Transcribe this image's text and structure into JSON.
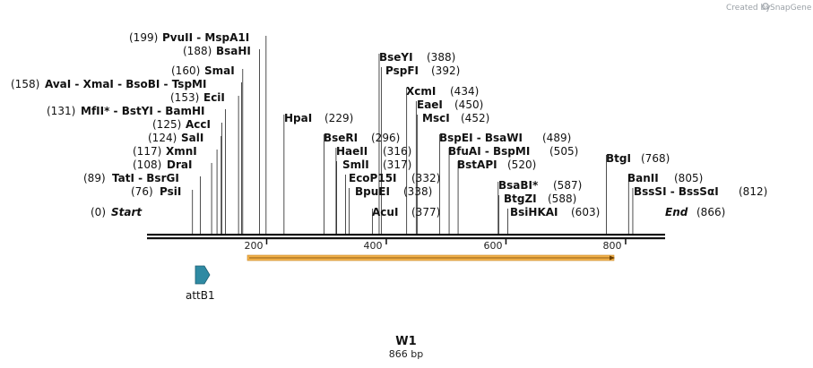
{
  "credit": {
    "text": "Created by",
    "brand": "SnapGene"
  },
  "map": {
    "name": "W1",
    "length_text": "866 bp",
    "length_bp": 866,
    "ticks": [
      "200",
      "400",
      "600",
      "800"
    ],
    "tick_values": [
      200,
      400,
      600,
      800
    ]
  },
  "sites": [
    {
      "pos": 199,
      "pos_text": "(199)",
      "names": "PvuII  - MspA1I",
      "star": false,
      "side": "left"
    },
    {
      "pos": 188,
      "pos_text": "(188)",
      "names": "BsaHI",
      "star": false,
      "side": "left"
    },
    {
      "pos": 160,
      "pos_text": "(160)",
      "names": "SmaI",
      "star": false,
      "side": "left"
    },
    {
      "pos": 158,
      "pos_text": "(158)",
      "names": "AvaI  - XmaI  - BsoBI  - TspMI",
      "star": false,
      "side": "left"
    },
    {
      "pos": 153,
      "pos_text": "(153)",
      "names": "EciI",
      "star": false,
      "side": "left"
    },
    {
      "pos": 131,
      "pos_text": "(131)",
      "names": "MfII",
      "star": true,
      "names2": " - BstYI  - BamHI",
      "side": "left"
    },
    {
      "pos": 125,
      "pos_text": "(125)",
      "names": "AccI",
      "star": false,
      "side": "left"
    },
    {
      "pos": 124,
      "pos_text": "(124)",
      "names": "SalI",
      "star": false,
      "side": "left"
    },
    {
      "pos": 117,
      "pos_text": "(117)",
      "names": "XmnI",
      "star": false,
      "side": "left"
    },
    {
      "pos": 108,
      "pos_text": "(108)",
      "names": "DraI",
      "star": false,
      "side": "left"
    },
    {
      "pos": 89,
      "pos_text": "(89)",
      "names": "TatI  - BsrGI",
      "star": false,
      "side": "left"
    },
    {
      "pos": 76,
      "pos_text": "(76)",
      "names": "PsiI",
      "star": false,
      "side": "left"
    },
    {
      "pos": 229,
      "pos_text": "(229)",
      "names": "HpaI",
      "star": false,
      "side": "right"
    },
    {
      "pos": 296,
      "pos_text": "(296)",
      "names": "BseRI",
      "star": false,
      "side": "right"
    },
    {
      "pos": 316,
      "pos_text": "(316)",
      "names": "HaeII",
      "star": false,
      "side": "right"
    },
    {
      "pos": 317,
      "pos_text": "(317)",
      "names": "SmlI",
      "star": false,
      "side": "right"
    },
    {
      "pos": 332,
      "pos_text": "(332)",
      "names": "EcoP15I",
      "star": false,
      "side": "right"
    },
    {
      "pos": 338,
      "pos_text": "(338)",
      "names": "BpuEI",
      "star": false,
      "side": "right"
    },
    {
      "pos": 377,
      "pos_text": "(377)",
      "names": "AcuI",
      "star": false,
      "side": "right"
    },
    {
      "pos": 388,
      "pos_text": "(388)",
      "names": "BseYI",
      "star": false,
      "side": "right"
    },
    {
      "pos": 392,
      "pos_text": "(392)",
      "names": "PspFI",
      "star": false,
      "side": "right"
    },
    {
      "pos": 434,
      "pos_text": "(434)",
      "names": "XcmI",
      "star": false,
      "side": "right"
    },
    {
      "pos": 450,
      "pos_text": "(450)",
      "names": "EaeI",
      "star": false,
      "side": "right"
    },
    {
      "pos": 452,
      "pos_text": "(452)",
      "names": "MscI",
      "star": false,
      "side": "right"
    },
    {
      "pos": 489,
      "pos_text": "(489)",
      "names": "BspEI  - BsaWI",
      "star": false,
      "side": "right"
    },
    {
      "pos": 505,
      "pos_text": "(505)",
      "names": "BfuAI  - BspMI",
      "star": false,
      "side": "right"
    },
    {
      "pos": 520,
      "pos_text": "(520)",
      "names": "BstAPI",
      "star": false,
      "side": "right"
    },
    {
      "pos": 587,
      "pos_text": "(587)",
      "names": "BsaBI",
      "star": true,
      "names2": "",
      "side": "right"
    },
    {
      "pos": 588,
      "pos_text": "(588)",
      "names": "BtgZI",
      "star": false,
      "side": "right"
    },
    {
      "pos": 603,
      "pos_text": "(603)",
      "names": "BsiHKAI",
      "star": false,
      "side": "right"
    },
    {
      "pos": 768,
      "pos_text": "(768)",
      "names": "BtgI",
      "star": false,
      "side": "right"
    },
    {
      "pos": 805,
      "pos_text": "(805)",
      "names": "BanII",
      "star": false,
      "side": "right"
    },
    {
      "pos": 812,
      "pos_text": "(812)",
      "names": "BssSI  - BssSαI",
      "star": false,
      "side": "right"
    }
  ],
  "ends": {
    "start_pos_text": "(0)",
    "start_label": "Start",
    "end_pos_text": "(866)",
    "end_label": "End"
  },
  "features": {
    "attb1_label": "attB1",
    "attb1_color": "#2f8aa3",
    "orf_color": "#f2b14a"
  }
}
